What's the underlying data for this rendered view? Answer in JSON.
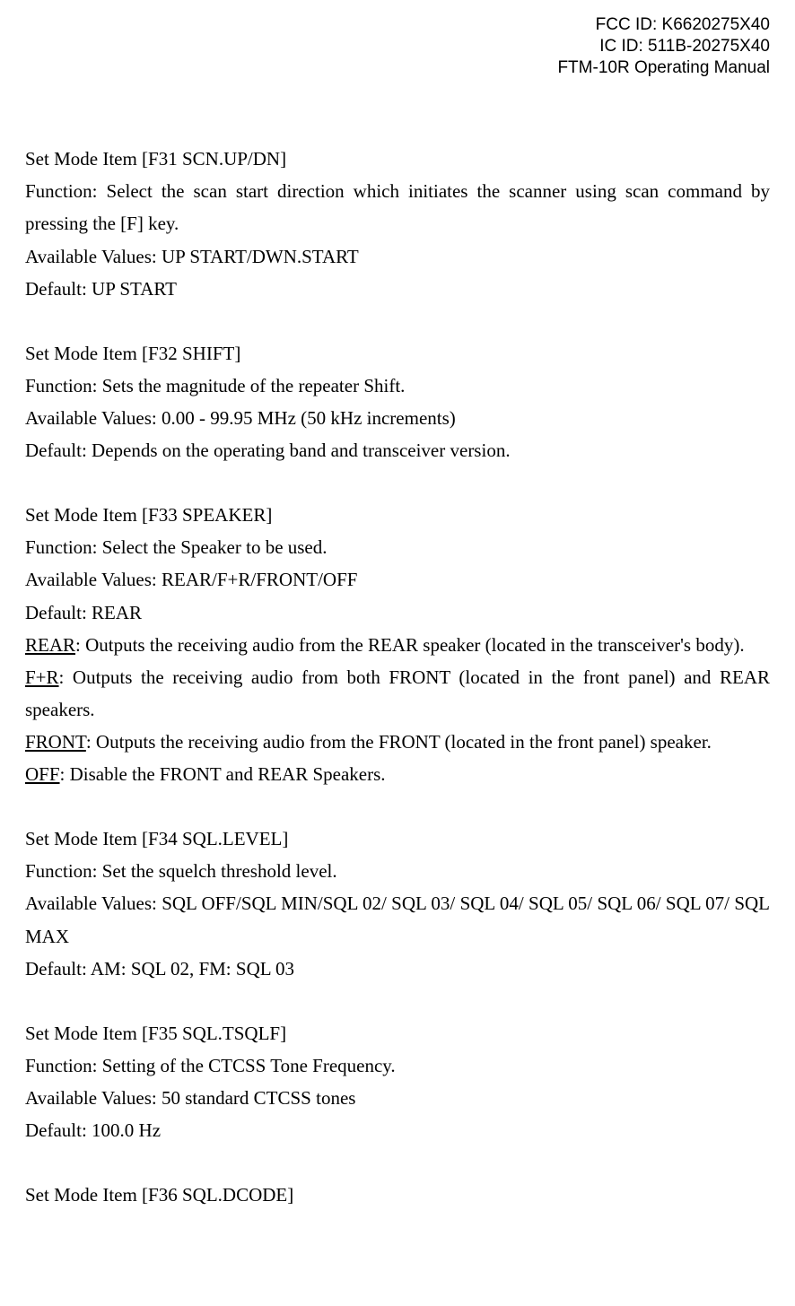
{
  "header": {
    "fcc": "FCC ID: K6620275X40",
    "ic": "IC ID: 511B-20275X40",
    "manual": "FTM-10R Operating Manual"
  },
  "sections": {
    "f31": {
      "title": "Set Mode Item [F31 SCN.UP/DN]",
      "function": "Function: Select the scan start direction which initiates the scanner using scan command by pressing the [F] key.",
      "values": "Available Values: UP START/DWN.START",
      "default": "Default: UP START"
    },
    "f32": {
      "title": "Set Mode Item [F32 SHIFT]",
      "function": "Function: Sets the magnitude of the repeater Shift.",
      "values": "Available Values: 0.00 - 99.95 MHz (50 kHz increments)",
      "default": "Default: Depends on the operating band and transceiver version."
    },
    "f33": {
      "title": "Set Mode Item [F33 SPEAKER]",
      "function": "Function: Select the Speaker to be used.",
      "values": "Available Values: REAR/F+R/FRONT/OFF",
      "default": "Default: REAR",
      "rear_label": "REAR",
      "rear_text": ": Outputs the receiving audio from the REAR speaker (located in the transceiver's body).",
      "fr_label": "F+R",
      "fr_text": ": Outputs the receiving audio from both FRONT (located in the front panel) and REAR speakers.",
      "front_label": "FRONT",
      "front_text": ": Outputs the receiving audio from the FRONT (located in the front panel) speaker.",
      "off_label": "OFF",
      "off_text": ": Disable the FRONT and REAR Speakers."
    },
    "f34": {
      "title": "Set Mode Item [F34 SQL.LEVEL]",
      "function": "Function: Set the squelch threshold level.",
      "values": "Available Values: SQL OFF/SQL MIN/SQL 02/ SQL 03/ SQL 04/ SQL 05/ SQL 06/ SQL 07/ SQL MAX",
      "default": "Default: AM: SQL 02, FM: SQL 03"
    },
    "f35": {
      "title": "Set Mode Item [F35 SQL.TSQLF]",
      "function": "Function: Setting of the CTCSS Tone Frequency.",
      "values": "Available Values: 50 standard CTCSS tones",
      "default": "Default: 100.0 Hz"
    },
    "f36": {
      "title": "Set Mode Item [F36 SQL.DCODE]"
    }
  }
}
